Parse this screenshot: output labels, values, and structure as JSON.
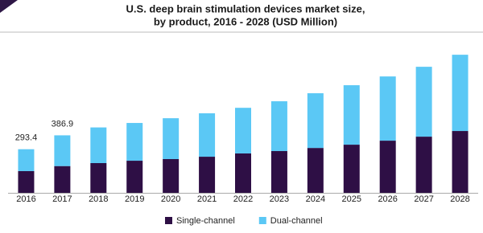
{
  "chart_data": {
    "type": "stacked-bar",
    "title": [
      "U.S. deep brain stimulation devices market size,",
      "by product, 2016 - 2028 (USD Million)"
    ],
    "categories": [
      "2016",
      "2017",
      "2018",
      "2019",
      "2020",
      "2021",
      "2022",
      "2023",
      "2024",
      "2025",
      "2026",
      "2027",
      "2028"
    ],
    "series": [
      {
        "name": "Single-channel",
        "color": "#2e0f45",
        "values": [
          146,
          180,
          200,
          216,
          227,
          243,
          265,
          281,
          302,
          324,
          351,
          378,
          416
        ]
      },
      {
        "name": "Dual-channel",
        "color": "#5bc8f5",
        "values": [
          147.4,
          206.9,
          240,
          254,
          275,
          292,
          307,
          335,
          368,
          400,
          432,
          470,
          513
        ]
      }
    ],
    "annotations": [
      {
        "category": "2016",
        "text": "293.4"
      },
      {
        "category": "2017",
        "text": "386.9"
      }
    ],
    "ylim": [
      0,
      1000
    ],
    "legend": "bottom"
  }
}
